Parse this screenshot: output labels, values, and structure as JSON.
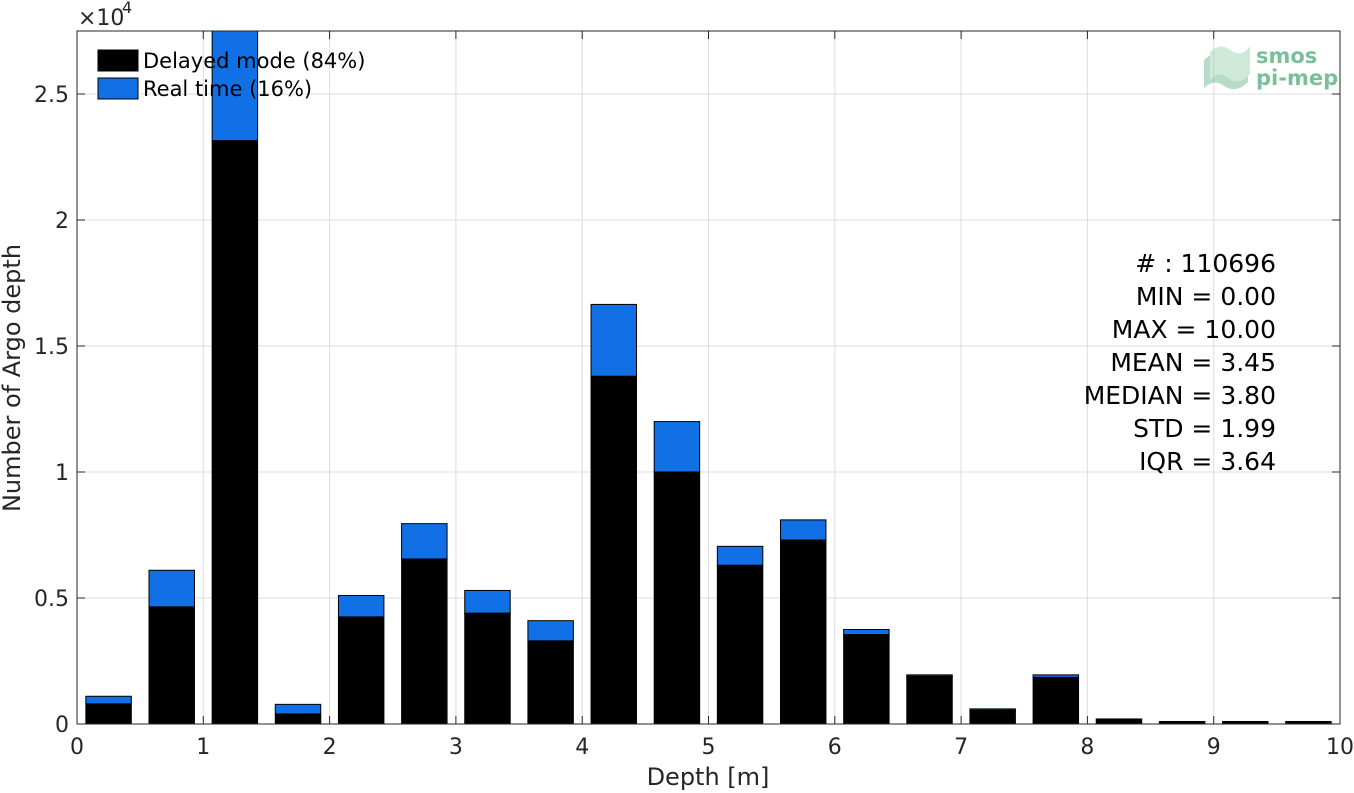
{
  "chart_data": {
    "type": "bar",
    "stacked": true,
    "xlabel": "Depth [m]",
    "ylabel": "Number of Argo depth",
    "y_multiplier_label": "×10",
    "y_multiplier_exponent": "4",
    "xlim": [
      0,
      10
    ],
    "ylim": [
      0,
      27500
    ],
    "x_ticks": [
      0,
      1,
      2,
      3,
      4,
      5,
      6,
      7,
      8,
      9,
      10
    ],
    "x_tick_labels": [
      "0",
      "1",
      "2",
      "3",
      "4",
      "5",
      "6",
      "7",
      "8",
      "9",
      "10"
    ],
    "y_ticks": [
      0,
      5000,
      10000,
      15000,
      20000,
      25000
    ],
    "y_tick_labels": [
      "0",
      "0.5",
      "1",
      "1.5",
      "2",
      "2.5"
    ],
    "grid": true,
    "legend_position": "top-left",
    "bin_width": 0.5,
    "bar_width": 0.36,
    "x": [
      0.25,
      0.75,
      1.25,
      1.75,
      2.25,
      2.75,
      3.25,
      3.75,
      4.25,
      4.75,
      5.25,
      5.75,
      6.25,
      6.75,
      7.25,
      7.75,
      8.25,
      8.75,
      9.25,
      9.75
    ],
    "series": [
      {
        "name": "Delayed mode (84%)",
        "color": "#000000",
        "values": [
          800,
          4650,
          23150,
          400,
          4250,
          6550,
          4400,
          3300,
          13800,
          10000,
          6300,
          7300,
          3550,
          1900,
          550,
          1850,
          200,
          100,
          100,
          100
        ]
      },
      {
        "name": "Real time (16%)",
        "color": "#1170e6",
        "values": [
          300,
          1450,
          4350,
          380,
          850,
          1400,
          900,
          800,
          2850,
          2000,
          750,
          800,
          200,
          50,
          50,
          100,
          0,
          0,
          0,
          0
        ]
      }
    ],
    "annotations": [
      "# : 110696",
      "MIN = 0.00",
      "MAX =  10.00",
      "MEAN = 3.45",
      "MEDIAN = 3.80",
      "STD = 1.99",
      "IQR = 3.64"
    ]
  },
  "logo": {
    "line1": "smos",
    "line2": "pi-mep",
    "color": "#7bbf9a"
  }
}
